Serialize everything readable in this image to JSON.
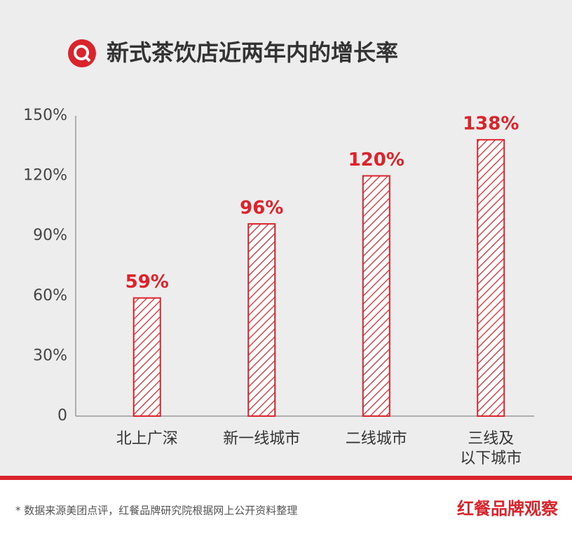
{
  "chart_data": {
    "type": "bar",
    "title": "新式茶饮店近两年内的增长率",
    "categories": [
      "北上广深",
      "新一线城市",
      "二线城市",
      "三线及\n以下城市"
    ],
    "values": [
      59,
      96,
      120,
      138
    ],
    "value_labels": [
      "59%",
      "96%",
      "120%",
      "138%"
    ],
    "color": "#d9242c",
    "ylim": [
      0,
      150
    ],
    "yticks": [
      0,
      {
        "value": 30,
        "label": "30%"
      },
      {
        "value": 60,
        "label": "60%"
      },
      {
        "value": 90,
        "label": "90%"
      },
      {
        "value": 120,
        "label": "120%"
      },
      {
        "value": 150,
        "label": "150%"
      }
    ],
    "grid": false,
    "source": "* 数据来源美团点评，红餐品牌研究院根据网上公开资料整理",
    "brand": "红餐品牌观察"
  }
}
